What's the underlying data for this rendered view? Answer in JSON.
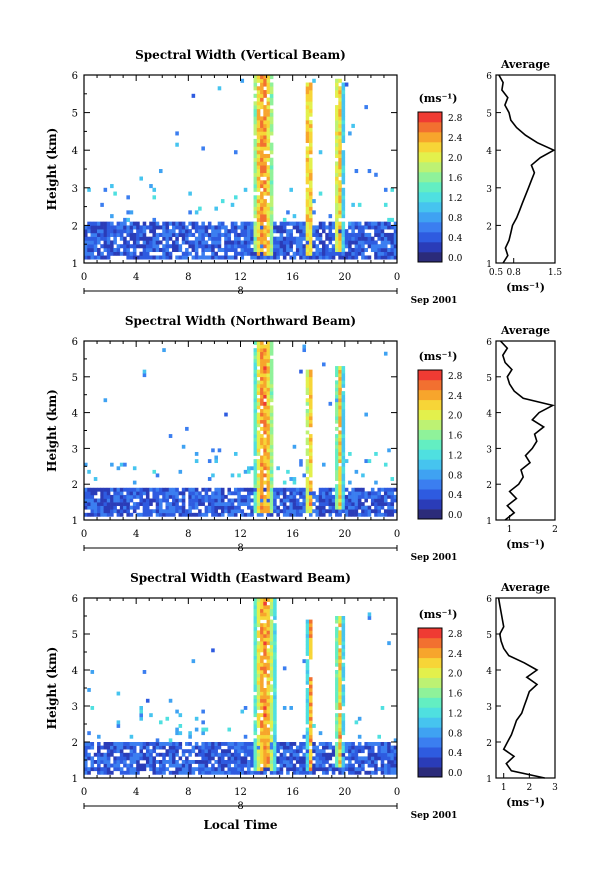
{
  "figure": {
    "xlabel": "Local Time",
    "date_label": "Sep 2001",
    "day_label": "8",
    "colorbar_unit": "(ms⁻¹)",
    "avg_xlabel": "(ms⁻¹)",
    "avg_title": "Average"
  },
  "chart_data": [
    {
      "type": "heatmap",
      "title": "Spectral Width (Vertical Beam)",
      "xlabel": "",
      "ylabel": "Height (km)",
      "xlim": [
        0,
        24
      ],
      "ylim": [
        1,
        6
      ],
      "xticks": [
        "0",
        "4",
        "8",
        "12",
        "16",
        "20",
        "0"
      ],
      "yticks": [
        "1",
        "2",
        "3",
        "4",
        "5",
        "6"
      ],
      "colorbar": {
        "unit": "(ms⁻¹)",
        "ticks": [
          "0.0",
          "0.4",
          "0.8",
          "1.2",
          "1.6",
          "2.0",
          "2.4",
          "2.8"
        ],
        "range": [
          0,
          3.0
        ]
      },
      "features": [
        {
          "t0": 0,
          "t1": 24,
          "h0": 1.15,
          "h1": 2.1,
          "level": 0.6
        },
        {
          "t0": 12.9,
          "t1": 14.6,
          "h0": 1.2,
          "h1": 6.0,
          "level": 2.7
        },
        {
          "t0": 16.9,
          "t1": 17.6,
          "h0": 1.2,
          "h1": 5.8,
          "level": 2.6
        },
        {
          "t0": 19.2,
          "t1": 19.9,
          "h0": 1.3,
          "h1": 5.9,
          "level": 2.5
        }
      ],
      "average": {
        "title": "Average",
        "xlabel": "(ms⁻¹)",
        "xticks": [
          "0.5",
          "0.8",
          "1.5"
        ],
        "xlim": [
          0.5,
          1.5
        ],
        "height": [
          1.0,
          1.2,
          1.4,
          1.6,
          1.8,
          2.0,
          2.2,
          2.4,
          2.6,
          2.8,
          3.0,
          3.2,
          3.4,
          3.6,
          3.8,
          4.0,
          4.2,
          4.4,
          4.6,
          4.8,
          5.0,
          5.2,
          5.4,
          5.6,
          5.8,
          6.0
        ],
        "width": [
          0.62,
          0.7,
          0.66,
          0.72,
          0.75,
          0.78,
          0.85,
          0.9,
          0.95,
          1.0,
          1.05,
          1.1,
          1.15,
          1.1,
          1.25,
          1.48,
          1.2,
          1.0,
          0.85,
          0.75,
          0.72,
          0.65,
          0.7,
          0.6,
          0.62,
          0.55
        ]
      }
    },
    {
      "type": "heatmap",
      "title": "Spectral Width (Northward Beam)",
      "xlabel": "",
      "ylabel": "Height (km)",
      "xlim": [
        0,
        24
      ],
      "ylim": [
        1,
        6
      ],
      "xticks": [
        "0",
        "4",
        "8",
        "12",
        "16",
        "20",
        "0"
      ],
      "yticks": [
        "1",
        "2",
        "3",
        "4",
        "5",
        "6"
      ],
      "colorbar": {
        "unit": "(ms⁻¹)",
        "ticks": [
          "0.0",
          "0.4",
          "0.8",
          "1.2",
          "1.6",
          "2.0",
          "2.4",
          "2.8"
        ],
        "range": [
          0,
          3.0
        ]
      },
      "features": [
        {
          "t0": 0,
          "t1": 24,
          "h0": 1.15,
          "h1": 1.9,
          "level": 0.6
        },
        {
          "t0": 13.0,
          "t1": 14.6,
          "h0": 1.2,
          "h1": 6.0,
          "level": 2.7
        },
        {
          "t0": 17.0,
          "t1": 17.6,
          "h0": 1.2,
          "h1": 5.2,
          "level": 2.6
        },
        {
          "t0": 19.3,
          "t1": 19.9,
          "h0": 1.3,
          "h1": 5.4,
          "level": 2.5
        }
      ],
      "average": {
        "title": "Average",
        "xlabel": "(ms⁻¹)",
        "xticks": [
          "1",
          "2"
        ],
        "xlim": [
          0.7,
          2.0
        ],
        "height": [
          1.0,
          1.2,
          1.4,
          1.6,
          1.8,
          2.0,
          2.2,
          2.4,
          2.6,
          2.8,
          3.0,
          3.2,
          3.4,
          3.6,
          3.8,
          4.0,
          4.2,
          4.4,
          4.6,
          4.8,
          5.0,
          5.2,
          5.4,
          5.6,
          5.8,
          6.0
        ],
        "width": [
          0.9,
          1.1,
          0.95,
          1.15,
          1.0,
          1.2,
          1.3,
          1.25,
          1.45,
          1.35,
          1.5,
          1.6,
          1.55,
          1.75,
          1.5,
          1.65,
          1.95,
          1.3,
          1.1,
          1.0,
          0.95,
          1.05,
          0.9,
          0.85,
          0.95,
          0.8
        ]
      }
    },
    {
      "type": "heatmap",
      "title": "Spectral Width (Eastward Beam)",
      "xlabel": "Local Time",
      "ylabel": "Height (km)",
      "xlim": [
        0,
        24
      ],
      "ylim": [
        1,
        6
      ],
      "xticks": [
        "0",
        "4",
        "8",
        "12",
        "16",
        "20",
        "0"
      ],
      "yticks": [
        "1",
        "2",
        "3",
        "4",
        "5",
        "6"
      ],
      "colorbar": {
        "unit": "(ms⁻¹)",
        "ticks": [
          "0.0",
          "0.4",
          "0.8",
          "1.2",
          "1.6",
          "2.0",
          "2.4",
          "2.8"
        ],
        "range": [
          0,
          3.0
        ]
      },
      "features": [
        {
          "t0": 0,
          "t1": 24,
          "h0": 1.15,
          "h1": 2.0,
          "level": 0.6
        },
        {
          "t0": 13.0,
          "t1": 14.7,
          "h0": 1.2,
          "h1": 6.0,
          "level": 2.7
        },
        {
          "t0": 17.1,
          "t1": 17.6,
          "h0": 1.2,
          "h1": 5.4,
          "level": 2.6
        },
        {
          "t0": 19.3,
          "t1": 19.9,
          "h0": 1.3,
          "h1": 5.5,
          "level": 2.5
        }
      ],
      "average": {
        "title": "Average",
        "xlabel": "(ms⁻¹)",
        "xticks": [
          "1",
          "2",
          "3"
        ],
        "xlim": [
          0.7,
          3.0
        ],
        "height": [
          1.0,
          1.2,
          1.4,
          1.6,
          1.8,
          2.0,
          2.2,
          2.4,
          2.6,
          2.8,
          3.0,
          3.2,
          3.4,
          3.6,
          3.8,
          4.0,
          4.2,
          4.4,
          4.6,
          4.8,
          5.0,
          5.2,
          5.4,
          5.6,
          5.8,
          6.0
        ],
        "width": [
          2.6,
          1.3,
          1.1,
          1.4,
          1.0,
          1.15,
          1.3,
          1.4,
          1.5,
          1.7,
          1.8,
          1.9,
          2.0,
          2.3,
          1.9,
          2.3,
          1.8,
          1.2,
          1.0,
          0.9,
          0.85,
          1.0,
          0.95,
          0.9,
          0.85,
          0.8
        ]
      }
    }
  ]
}
